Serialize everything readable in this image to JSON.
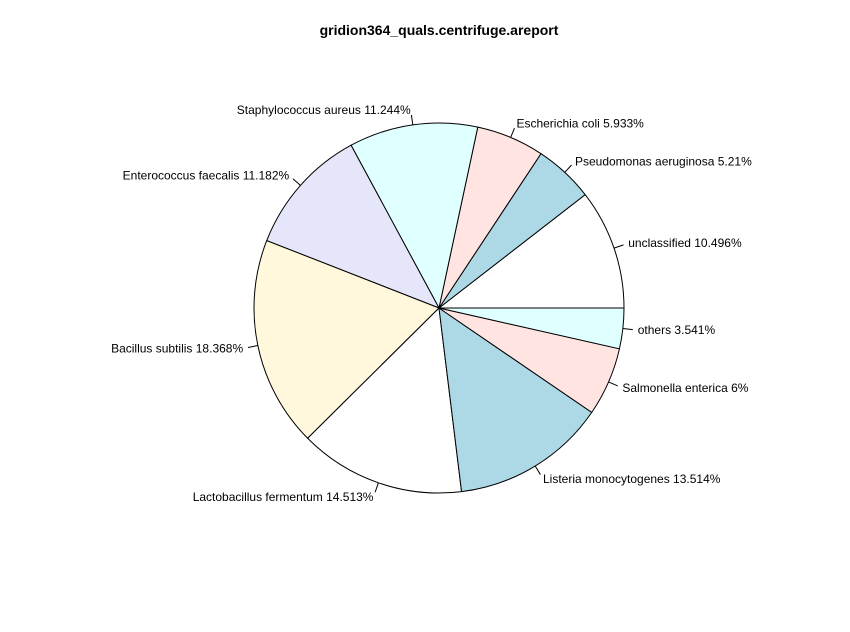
{
  "chart_data": {
    "type": "pie",
    "title": "gridion364_quals.centrifuge.areport",
    "slices": [
      {
        "label": "unclassified 10.496%",
        "value": 10.496,
        "color": "#ffffff"
      },
      {
        "label": "Pseudomonas aeruginosa 5.21%",
        "value": 5.21,
        "color": "#add8e6"
      },
      {
        "label": "Escherichia coli 5.933%",
        "value": 5.933,
        "color": "#ffe4e1"
      },
      {
        "label": "Staphylococcus aureus 11.244%",
        "value": 11.244,
        "color": "#e0ffff"
      },
      {
        "label": "Enterococcus faecalis 11.182%",
        "value": 11.182,
        "color": "#e6e6fa"
      },
      {
        "label": "Bacillus subtilis 18.368%",
        "value": 18.368,
        "color": "#fff8dc"
      },
      {
        "label": "Lactobacillus fermentum 14.513%",
        "value": 14.513,
        "color": "#ffffff"
      },
      {
        "label": "Listeria monocytogenes 13.514%",
        "value": 13.514,
        "color": "#add8e6"
      },
      {
        "label": "Salmonella enterica 6%",
        "value": 6,
        "color": "#ffe4e1"
      },
      {
        "label": "others 3.541%",
        "value": 3.541,
        "color": "#e0ffff"
      }
    ],
    "direction": "counterclockwise",
    "start_angle_deg": 0
  }
}
